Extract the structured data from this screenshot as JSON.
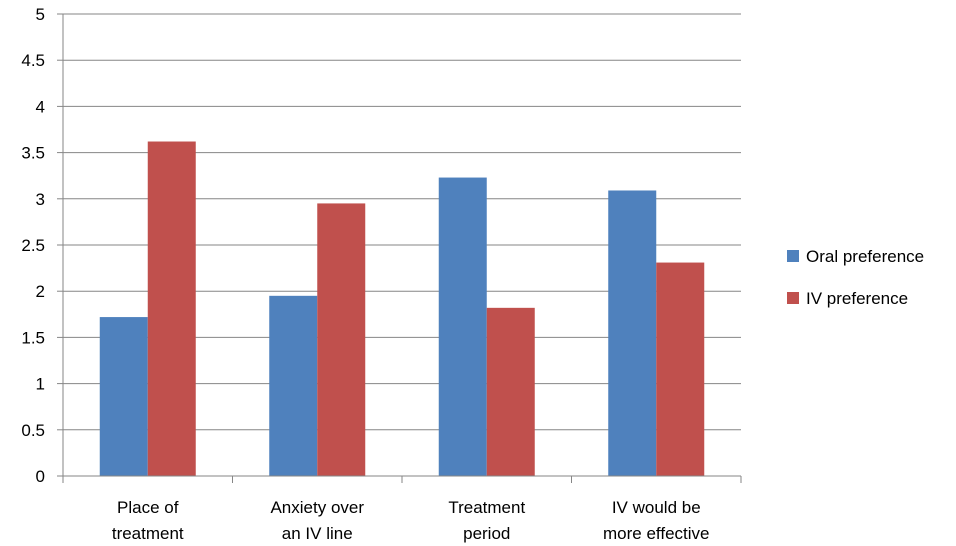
{
  "chart_data": {
    "type": "bar",
    "categories": [
      [
        "Place of",
        "treatment"
      ],
      [
        "Anxiety over",
        "an IV line"
      ],
      [
        "Treatment",
        "period"
      ],
      [
        "IV would be",
        "more effective"
      ]
    ],
    "series": [
      {
        "name": "Oral preference",
        "color": "#4F81BD",
        "values": [
          1.72,
          1.95,
          3.23,
          3.09
        ]
      },
      {
        "name": "IV preference",
        "color": "#C0504D",
        "values": [
          3.62,
          2.95,
          1.82,
          2.31
        ]
      }
    ],
    "y_ticks": [
      "0",
      "0.5",
      "1",
      "1.5",
      "2",
      "2.5",
      "3",
      "3.5",
      "4",
      "4.5",
      "5"
    ],
    "ylim": [
      0,
      5
    ],
    "grid": true,
    "legend_position": "right",
    "title": "",
    "xlabel": "",
    "ylabel": ""
  }
}
